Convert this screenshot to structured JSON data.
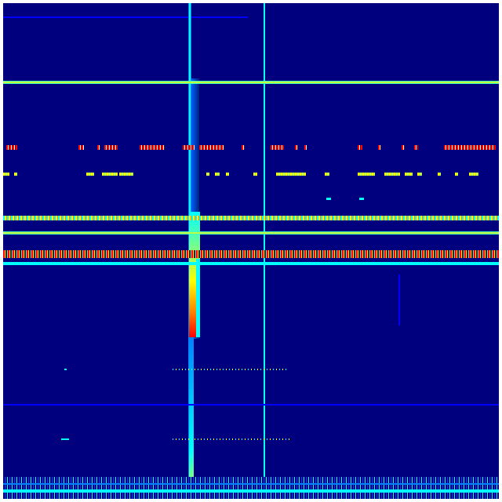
{
  "colormap": {
    "name": "jet",
    "background": "#00007f",
    "blue": "#0000ff",
    "light_blue": "#0080ff",
    "cyan": "#00ffff",
    "green_yellow": "#80ff80",
    "yellow": "#ffff00",
    "orange": "#ff8000",
    "red": "#ff0000",
    "dark_red": "#800000"
  },
  "features": [
    "horizontal-bands",
    "vertical-streaks",
    "dashed-rows",
    "bottom-noise"
  ]
}
